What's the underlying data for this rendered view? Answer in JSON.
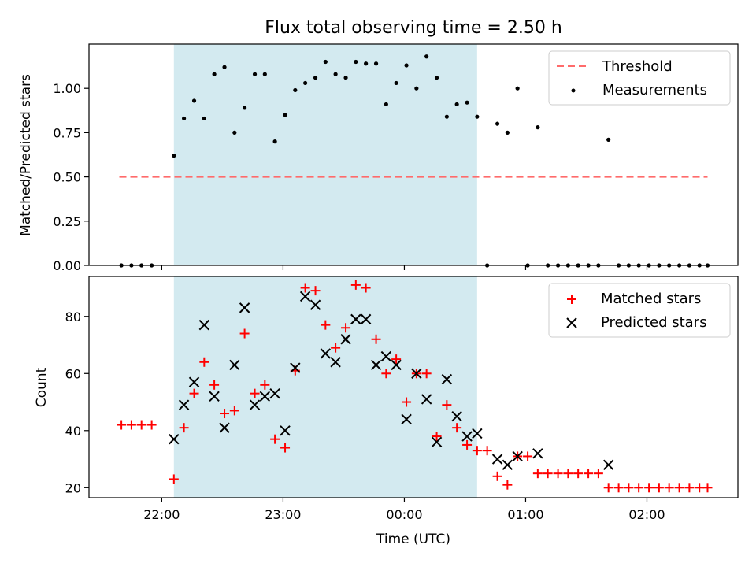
{
  "figure": {
    "title": "Flux total observing time = 2.50 h",
    "xlabel": "Time (UTC)"
  },
  "chart_data": [
    {
      "type": "scatter",
      "panel": "top",
      "ylabel": "Matched/Predicted stars",
      "xlim_hours": [
        21.4,
        26.75
      ],
      "ylim": [
        0,
        1.25
      ],
      "yticks": [
        "0.00",
        "0.25",
        "0.50",
        "0.75",
        "1.00"
      ],
      "ytick_values": [
        0,
        0.25,
        0.5,
        0.75,
        1.0
      ],
      "shaded_interval_hours": [
        22.1,
        24.6
      ],
      "shade_color": "#d3eaf0",
      "legend_position": "upper right",
      "threshold": {
        "name": "Threshold",
        "value": 0.5,
        "x_range_hours": [
          21.65,
          26.5
        ],
        "color": "#ff6b6b"
      },
      "series": [
        {
          "name": "Measurements",
          "color": "#000000",
          "marker": "dot",
          "x_hours": [
            21.667,
            21.75,
            21.833,
            21.917,
            22.1,
            22.183,
            22.267,
            22.35,
            22.433,
            22.517,
            22.6,
            22.683,
            22.767,
            22.85,
            22.933,
            23.017,
            23.1,
            23.183,
            23.267,
            23.35,
            23.433,
            23.517,
            23.6,
            23.683,
            23.767,
            23.85,
            23.933,
            24.017,
            24.1,
            24.183,
            24.267,
            24.35,
            24.433,
            24.517,
            24.6,
            24.683,
            24.767,
            24.85,
            24.933,
            25.017,
            25.1,
            25.183,
            25.267,
            25.35,
            25.433,
            25.517,
            25.6,
            25.683,
            25.767,
            25.85,
            25.933,
            26.017,
            26.1,
            26.183,
            26.267,
            26.35,
            26.433,
            26.5
          ],
          "y": [
            0,
            0,
            0,
            0,
            0.62,
            0.83,
            0.93,
            0.83,
            1.08,
            1.12,
            0.75,
            0.89,
            1.08,
            1.08,
            0.7,
            0.85,
            0.99,
            1.03,
            1.06,
            1.15,
            1.08,
            1.06,
            1.15,
            1.14,
            1.14,
            0.91,
            1.03,
            1.13,
            1.0,
            1.18,
            1.06,
            0.84,
            0.91,
            0.92,
            0.84,
            0,
            0.8,
            0.75,
            1.0,
            0,
            0.78,
            0,
            0,
            0,
            0,
            0,
            0,
            0.71,
            0,
            0,
            0,
            0,
            0,
            0,
            0,
            0,
            0,
            0
          ]
        }
      ]
    },
    {
      "type": "scatter",
      "panel": "bottom",
      "ylabel": "Count",
      "xlim_hours": [
        21.4,
        26.75
      ],
      "ylim": [
        16.5,
        94
      ],
      "yticks": [
        "20",
        "40",
        "60",
        "80"
      ],
      "ytick_values": [
        20,
        40,
        60,
        80
      ],
      "xticks": [
        "22:00",
        "23:00",
        "00:00",
        "01:00",
        "02:00"
      ],
      "xtick_hours": [
        22,
        23,
        24,
        25,
        26
      ],
      "shaded_interval_hours": [
        22.1,
        24.6
      ],
      "shade_color": "#d3eaf0",
      "legend_position": "upper right",
      "series": [
        {
          "name": "Matched stars",
          "color": "#ff0000",
          "marker": "plus",
          "x_hours": [
            21.667,
            21.75,
            21.833,
            21.917,
            22.1,
            22.183,
            22.267,
            22.35,
            22.433,
            22.517,
            22.6,
            22.683,
            22.767,
            22.85,
            22.933,
            23.017,
            23.1,
            23.183,
            23.267,
            23.35,
            23.433,
            23.517,
            23.6,
            23.683,
            23.767,
            23.85,
            23.933,
            24.017,
            24.1,
            24.183,
            24.267,
            24.35,
            24.433,
            24.517,
            24.6,
            24.683,
            24.767,
            24.85,
            24.933,
            25.017,
            25.1,
            25.183,
            25.267,
            25.35,
            25.433,
            25.517,
            25.6,
            25.683,
            25.767,
            25.85,
            25.933,
            26.017,
            26.1,
            26.183,
            26.267,
            26.35,
            26.433,
            26.5
          ],
          "y": [
            42,
            42,
            42,
            42,
            23,
            41,
            53,
            64,
            56,
            46,
            47,
            74,
            53,
            56,
            37,
            34,
            61,
            90,
            89,
            77,
            69,
            76,
            91,
            90,
            72,
            60,
            65,
            50,
            60,
            60,
            38,
            49,
            41,
            35,
            33,
            33,
            24,
            21,
            31,
            31,
            25,
            25,
            25,
            25,
            25,
            25,
            25,
            20,
            20,
            20,
            20,
            20,
            20,
            20,
            20,
            20,
            20,
            20
          ]
        },
        {
          "name": "Predicted stars",
          "color": "#000000",
          "marker": "x",
          "x_hours": [
            22.1,
            22.183,
            22.267,
            22.35,
            22.433,
            22.517,
            22.6,
            22.683,
            22.767,
            22.85,
            22.933,
            23.017,
            23.1,
            23.183,
            23.267,
            23.35,
            23.433,
            23.517,
            23.6,
            23.683,
            23.767,
            23.85,
            23.933,
            24.017,
            24.1,
            24.183,
            24.267,
            24.35,
            24.433,
            24.517,
            24.6,
            24.767,
            24.85,
            24.933,
            25.1,
            25.683
          ],
          "y": [
            37,
            49,
            57,
            77,
            52,
            41,
            63,
            83,
            49,
            52,
            53,
            40,
            62,
            87,
            84,
            67,
            64,
            72,
            79,
            79,
            63,
            66,
            63,
            44,
            60,
            51,
            36,
            58,
            45,
            38,
            39,
            30,
            28,
            31,
            32,
            28
          ]
        }
      ]
    }
  ]
}
